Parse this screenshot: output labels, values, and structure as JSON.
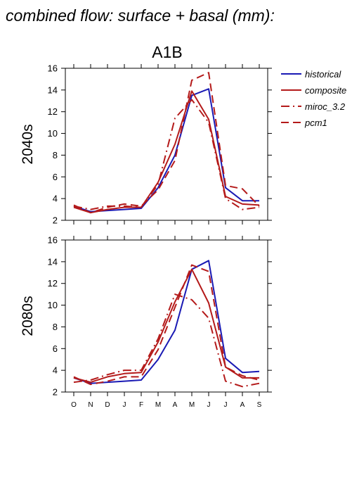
{
  "figure_title": "combined flow: surface + basal (mm):",
  "scenario": "A1B",
  "chart_data": [
    {
      "type": "line",
      "panel": "2040s",
      "ylabel": "2040s",
      "ylim": [
        2,
        16
      ],
      "yticks": [
        2,
        4,
        6,
        8,
        10,
        12,
        14,
        16
      ],
      "categories": [
        "O",
        "N",
        "D",
        "J",
        "F",
        "M",
        "A",
        "M",
        "J",
        "J",
        "A",
        "S"
      ],
      "show_xtick_labels": false,
      "series": [
        {
          "name": "historical",
          "color": "#1a1ab4",
          "dash": "solid",
          "values": [
            3.3,
            2.8,
            2.9,
            3.0,
            3.1,
            5.0,
            8.0,
            13.5,
            14.1,
            5.0,
            3.8,
            3.8
          ]
        },
        {
          "name": "composite",
          "color": "#b41a1a",
          "dash": "solid",
          "values": [
            3.2,
            2.7,
            3.0,
            3.2,
            3.2,
            5.5,
            9.0,
            13.9,
            11.3,
            4.2,
            3.5,
            3.4
          ]
        },
        {
          "name": "miroc_3.2",
          "color": "#b41a1a",
          "dash": "dashdot",
          "values": [
            3.3,
            3.0,
            3.3,
            3.3,
            3.2,
            5.3,
            11.4,
            13.1,
            11.0,
            4.0,
            3.0,
            3.2
          ]
        },
        {
          "name": "pcm1",
          "color": "#b41a1a",
          "dash": "dash",
          "values": [
            3.4,
            2.7,
            3.2,
            3.5,
            3.3,
            4.8,
            7.5,
            14.9,
            15.6,
            5.2,
            4.9,
            3.3
          ]
        }
      ]
    },
    {
      "type": "line",
      "panel": "2080s",
      "ylabel": "2080s",
      "ylim": [
        2,
        16
      ],
      "yticks": [
        2,
        4,
        6,
        8,
        10,
        12,
        14,
        16
      ],
      "categories": [
        "O",
        "N",
        "D",
        "J",
        "F",
        "M",
        "A",
        "M",
        "J",
        "J",
        "A",
        "S"
      ],
      "show_xtick_labels": true,
      "series": [
        {
          "name": "historical",
          "color": "#1a1ab4",
          "dash": "solid",
          "values": [
            3.3,
            2.8,
            2.9,
            3.0,
            3.1,
            5.0,
            7.7,
            13.3,
            14.1,
            5.1,
            3.8,
            3.9
          ]
        },
        {
          "name": "composite",
          "color": "#b41a1a",
          "dash": "solid",
          "values": [
            3.3,
            2.9,
            3.4,
            3.7,
            3.8,
            6.6,
            10.3,
            13.3,
            10.2,
            4.3,
            3.3,
            3.3
          ]
        },
        {
          "name": "miroc_3.2",
          "color": "#b41a1a",
          "dash": "dashdot",
          "values": [
            2.9,
            3.1,
            3.6,
            4.0,
            4.0,
            6.9,
            11.0,
            10.5,
            8.8,
            3.0,
            2.5,
            2.8
          ]
        },
        {
          "name": "pcm1",
          "color": "#b41a1a",
          "dash": "dash",
          "values": [
            3.4,
            2.7,
            3.0,
            3.4,
            3.4,
            5.9,
            9.8,
            13.7,
            13.1,
            4.3,
            3.5,
            3.1
          ]
        }
      ]
    }
  ]
}
